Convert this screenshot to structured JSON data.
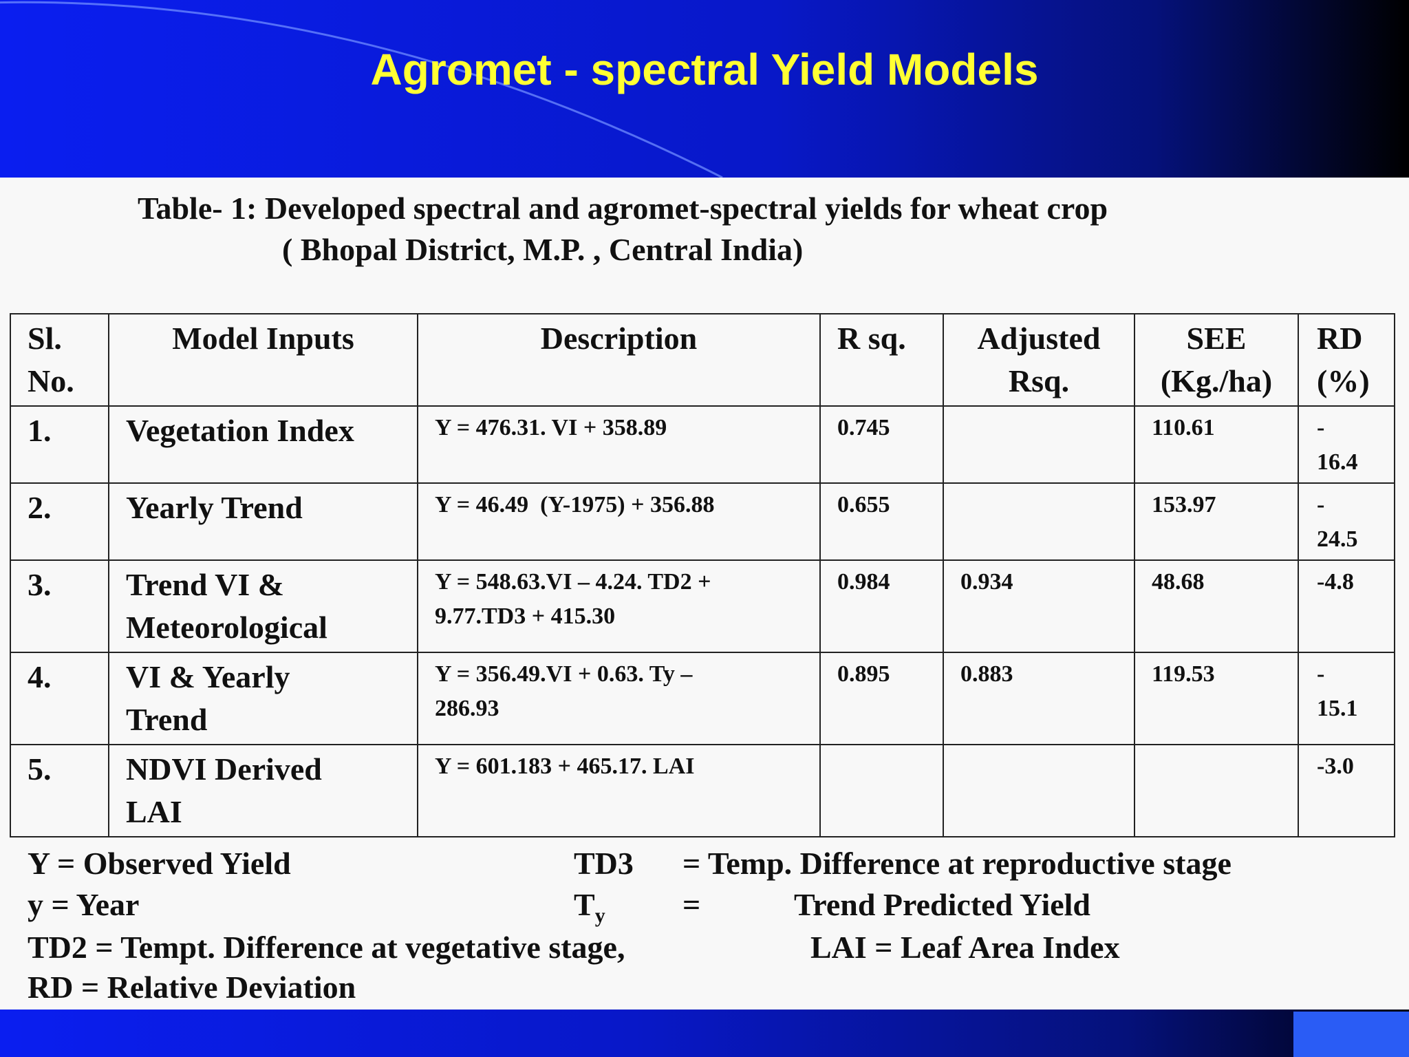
{
  "slide": {
    "title": "Agromet - spectral Yield Models",
    "caption_line1": "Table- 1: Developed spectral and agromet-spectral yields for wheat crop",
    "caption_line2": "( Bhopal District, M.P. , Central India)"
  },
  "table": {
    "headers": {
      "sl_1": "Sl.",
      "sl_2": "No.",
      "inputs": "Model Inputs",
      "description": "Description",
      "rsq": "R sq.",
      "adj_1": "Adjusted",
      "adj_2": "Rsq.",
      "see_1": "SEE",
      "see_2": "(Kg./ha)",
      "rd_1": "RD",
      "rd_2": "(%)"
    },
    "rows": [
      {
        "sl": "1.",
        "input_1": "Vegetation Index",
        "input_2": "",
        "desc_1": "Y = 476.31. VI + 358.89",
        "desc_2": "",
        "rsq": "0.745",
        "adj": "",
        "see": "110.61",
        "rd_1": "-",
        "rd_2": "16.4"
      },
      {
        "sl": "2.",
        "input_1": "Yearly Trend",
        "input_2": "",
        "desc_1": "Y = 46.49  (Y-1975) + 356.88",
        "desc_2": "",
        "rsq": "0.655",
        "adj": "",
        "see": "153.97",
        "rd_1": "-",
        "rd_2": "24.5"
      },
      {
        "sl": "3.",
        "input_1": "Trend VI &",
        "input_2": "Meteorological",
        "desc_1": "Y = 548.63.VI – 4.24. TD2 +",
        "desc_2": "9.77.TD3 + 415.30",
        "rsq": "0.984",
        "adj": "0.934",
        "see": "48.68",
        "rd_1": "-4.8",
        "rd_2": ""
      },
      {
        "sl": "4.",
        "input_1": "VI & Yearly",
        "input_2": "Trend",
        "desc_1": "Y = 356.49.VI + 0.63. Ty –",
        "desc_2": "286.93",
        "rsq": "0.895",
        "adj": "0.883",
        "see": "119.53",
        "rd_1": "-",
        "rd_2": "15.1"
      },
      {
        "sl": "5.",
        "input_1": "NDVI Derived",
        "input_2": "LAI",
        "desc_1": "Y = 601.183 + 465.17. LAI",
        "desc_2": "",
        "rsq": "",
        "adj": "",
        "see": "",
        "rd_1": "-3.0",
        "rd_2": ""
      }
    ]
  },
  "legend": {
    "y_obs": "Y = Observed Yield",
    "td3_key": "TD3",
    "td3_val": "= Temp. Difference at reproductive stage",
    "year": "y = Year",
    "ty_key": "T",
    "ty_sub": "y",
    "ty_eq": "=",
    "ty_val": "Trend Predicted Yield",
    "td2": "TD2 = Tempt. Difference at vegetative stage,",
    "lai": "LAI = Leaf Area Index",
    "rd": "RD = Relative Deviation"
  },
  "colors": {
    "title": "#ffff33",
    "header_bg_start": "#0a1ef0",
    "header_bg_end": "#000000"
  }
}
